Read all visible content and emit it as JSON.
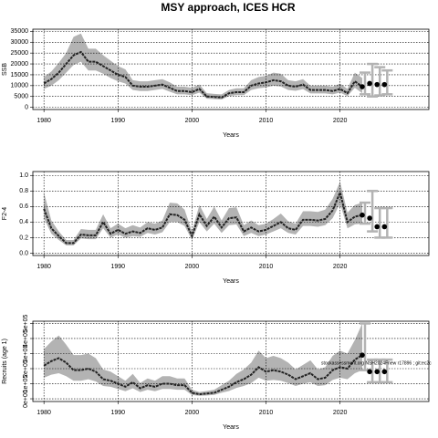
{
  "chart_data": [
    {
      "type": "line",
      "title": "MSY approach, ICES HCR",
      "x_label": "Years",
      "y_label": "SSB",
      "line_color": "#222222",
      "band_color": "#b3b3b3",
      "grid": true,
      "xlim": [
        1978.5,
        2032
      ],
      "xticks": [
        1980,
        1990,
        2000,
        2010,
        2020
      ],
      "ylim": [
        -1000,
        36000
      ],
      "yticks": [
        0,
        5000,
        10000,
        15000,
        20000,
        25000,
        30000,
        35000
      ],
      "x": [
        1980,
        1981,
        1982,
        1983,
        1984,
        1985,
        1986,
        1987,
        1988,
        1989,
        1990,
        1991,
        1992,
        1993,
        1994,
        1995,
        1996,
        1997,
        1998,
        1999,
        2000,
        2001,
        2002,
        2003,
        2004,
        2005,
        2006,
        2007,
        2008,
        2009,
        2010,
        2011,
        2012,
        2013,
        2014,
        2015,
        2016,
        2017,
        2018,
        2019,
        2020,
        2021,
        2022,
        2023
      ],
      "values": [
        11000,
        13000,
        16000,
        20000,
        24000,
        25500,
        21000,
        21000,
        19000,
        17000,
        15000,
        14000,
        10000,
        9500,
        9500,
        10000,
        10500,
        9000,
        7500,
        7500,
        7000,
        8500,
        5000,
        4800,
        4500,
        6500,
        7000,
        7000,
        10000,
        11000,
        11500,
        12500,
        12000,
        10000,
        9500,
        10500,
        8000,
        8000,
        8000,
        7500,
        8500,
        6500,
        12000,
        9500
      ],
      "lower": [
        8500,
        10000,
        12500,
        16000,
        19500,
        21000,
        17000,
        17000,
        15500,
        13500,
        12000,
        11000,
        8000,
        7500,
        7500,
        8000,
        8500,
        7200,
        6000,
        6000,
        5600,
        6800,
        4000,
        3800,
        3600,
        5200,
        5600,
        5600,
        8000,
        8800,
        9200,
        10000,
        9600,
        8000,
        7600,
        8400,
        6400,
        6400,
        6400,
        6000,
        6800,
        5200,
        9000,
        6500
      ],
      "upper": [
        14000,
        16500,
        20500,
        25000,
        32500,
        34000,
        27000,
        27000,
        24000,
        21500,
        19000,
        17500,
        12500,
        12000,
        12000,
        12500,
        13000,
        11500,
        9500,
        9500,
        9000,
        10500,
        6500,
        6200,
        6000,
        8000,
        8800,
        8800,
        12500,
        14000,
        14500,
        16000,
        15500,
        12500,
        12000,
        13000,
        10000,
        10000,
        10000,
        9500,
        11000,
        8500,
        16000,
        13500
      ],
      "forecast": {
        "x": [
          2023,
          2024,
          2025,
          2026
        ],
        "values": [
          9500,
          11000,
          10500,
          10500
        ],
        "lower": [
          6000,
          5000,
          5500,
          6000
        ],
        "upper": [
          16000,
          20000,
          18500,
          17000
        ]
      }
    },
    {
      "type": "line",
      "x_label": "Years",
      "y_label": "F2-4",
      "line_color": "#222222",
      "band_color": "#b3b3b3",
      "grid": true,
      "xlim": [
        1978.5,
        2032
      ],
      "xticks": [
        1980,
        1990,
        2000,
        2010,
        2020
      ],
      "ylim": [
        -0.03,
        1.05
      ],
      "yticks": [
        {
          "value": 0,
          "label": "0.0"
        },
        0.2,
        0.4,
        0.6,
        0.8,
        {
          "value": 1,
          "label": "1.0"
        }
      ],
      "x": [
        1980,
        1981,
        1982,
        1983,
        1984,
        1985,
        1986,
        1987,
        1988,
        1989,
        1990,
        1991,
        1992,
        1993,
        1994,
        1995,
        1996,
        1997,
        1998,
        1999,
        2000,
        2001,
        2002,
        2003,
        2004,
        2005,
        2006,
        2007,
        2008,
        2009,
        2010,
        2011,
        2012,
        2013,
        2014,
        2015,
        2016,
        2017,
        2018,
        2019,
        2020,
        2021,
        2022,
        2023
      ],
      "values": [
        0.57,
        0.32,
        0.22,
        0.13,
        0.13,
        0.24,
        0.23,
        0.23,
        0.4,
        0.25,
        0.3,
        0.25,
        0.28,
        0.26,
        0.32,
        0.3,
        0.33,
        0.5,
        0.49,
        0.43,
        0.22,
        0.5,
        0.35,
        0.47,
        0.33,
        0.45,
        0.46,
        0.28,
        0.33,
        0.28,
        0.3,
        0.35,
        0.4,
        0.32,
        0.3,
        0.43,
        0.43,
        0.42,
        0.44,
        0.55,
        0.78,
        0.4,
        0.47,
        0.49
      ],
      "lower": [
        0.45,
        0.25,
        0.17,
        0.1,
        0.1,
        0.19,
        0.18,
        0.18,
        0.32,
        0.2,
        0.24,
        0.2,
        0.22,
        0.21,
        0.26,
        0.24,
        0.27,
        0.4,
        0.4,
        0.35,
        0.17,
        0.4,
        0.28,
        0.38,
        0.26,
        0.36,
        0.37,
        0.22,
        0.26,
        0.22,
        0.24,
        0.28,
        0.32,
        0.26,
        0.24,
        0.35,
        0.35,
        0.34,
        0.36,
        0.45,
        0.64,
        0.32,
        0.37,
        0.38
      ],
      "upper": [
        0.78,
        0.42,
        0.28,
        0.17,
        0.17,
        0.31,
        0.3,
        0.3,
        0.5,
        0.32,
        0.38,
        0.32,
        0.36,
        0.33,
        0.4,
        0.38,
        0.42,
        0.65,
        0.64,
        0.56,
        0.28,
        0.62,
        0.44,
        0.6,
        0.42,
        0.58,
        0.59,
        0.36,
        0.42,
        0.36,
        0.38,
        0.44,
        0.51,
        0.41,
        0.38,
        0.54,
        0.54,
        0.53,
        0.56,
        0.7,
        0.92,
        0.52,
        0.62,
        0.65
      ],
      "forecast": {
        "x": [
          2023,
          2024,
          2025,
          2026
        ],
        "values": [
          0.49,
          0.45,
          0.34,
          0.34
        ],
        "lower": [
          0.38,
          0.28,
          0.2,
          0.2
        ],
        "upper": [
          0.65,
          0.8,
          0.58,
          0.58
        ]
      }
    },
    {
      "type": "line",
      "x_label": "Years",
      "y_label": "Recruits (age 1)",
      "annotation": "stockassessment.org NSH2024Fnew r17896 ; git:ec2c",
      "line_color": "#222222",
      "band_color": "#b3b3b3",
      "grid": true,
      "xlim": [
        1978.5,
        2032
      ],
      "xticks": [
        1980,
        1990,
        2000,
        2010,
        2020
      ],
      "ylim": [
        -18000,
        515000
      ],
      "yticks": [
        {
          "value": 0,
          "label": "0e+00"
        },
        {
          "value": 100000,
          "label": "1e+05"
        },
        {
          "value": 200000,
          "label": "2e+05"
        },
        {
          "value": 300000,
          "label": "3e+05"
        },
        {
          "value": 400000,
          "label": "4e+05"
        },
        {
          "value": 500000,
          "label": "5e+05"
        }
      ],
      "x": [
        1980,
        1981,
        1982,
        1983,
        1984,
        1985,
        1986,
        1987,
        1988,
        1989,
        1990,
        1991,
        1992,
        1993,
        1994,
        1995,
        1996,
        1997,
        1998,
        1999,
        2000,
        2001,
        2002,
        2003,
        2004,
        2005,
        2006,
        2007,
        2008,
        2009,
        2010,
        2011,
        2012,
        2013,
        2014,
        2015,
        2016,
        2017,
        2018,
        2019,
        2020,
        2021,
        2022,
        2023
      ],
      "values": [
        220000,
        250000,
        270000,
        240000,
        190000,
        190000,
        200000,
        180000,
        130000,
        120000,
        100000,
        80000,
        110000,
        70000,
        90000,
        80000,
        100000,
        100000,
        90000,
        90000,
        40000,
        30000,
        35000,
        40000,
        60000,
        80000,
        110000,
        130000,
        160000,
        210000,
        180000,
        190000,
        180000,
        160000,
        130000,
        150000,
        170000,
        130000,
        140000,
        190000,
        210000,
        200000,
        260000,
        290000
      ],
      "lower": [
        140000,
        160000,
        170000,
        150000,
        120000,
        120000,
        130000,
        115000,
        85000,
        80000,
        65000,
        50000,
        70000,
        45000,
        60000,
        50000,
        65000,
        65000,
        60000,
        60000,
        25000,
        20000,
        22000,
        26000,
        40000,
        52000,
        72000,
        85000,
        105000,
        140000,
        120000,
        125000,
        120000,
        105000,
        85000,
        100000,
        110000,
        85000,
        90000,
        125000,
        140000,
        130000,
        170000,
        190000
      ],
      "upper": [
        330000,
        380000,
        420000,
        360000,
        290000,
        290000,
        300000,
        270000,
        195000,
        180000,
        150000,
        120000,
        165000,
        105000,
        135000,
        120000,
        150000,
        150000,
        135000,
        135000,
        60000,
        45000,
        52000,
        60000,
        90000,
        120000,
        165000,
        195000,
        240000,
        320000,
        270000,
        285000,
        270000,
        240000,
        195000,
        225000,
        255000,
        195000,
        210000,
        285000,
        320000,
        300000,
        390000,
        500000
      ],
      "forecast": {
        "x": [
          2023,
          2024,
          2025,
          2026
        ],
        "values": [
          290000,
          180000,
          180000,
          180000
        ],
        "lower": [
          190000,
          110000,
          110000,
          110000
        ],
        "upper": [
          500000,
          260000,
          260000,
          260000
        ]
      }
    }
  ]
}
